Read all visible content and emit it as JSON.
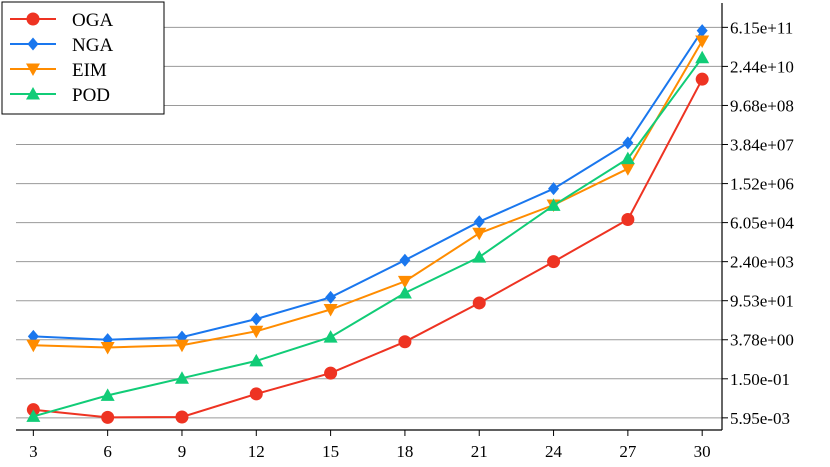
{
  "chart_data": {
    "type": "line",
    "y_scale": "log",
    "y_axis_position": "right",
    "grid": "horizontal",
    "legend_position": "top-left",
    "x": [
      3,
      6,
      9,
      12,
      15,
      18,
      21,
      24,
      27,
      30
    ],
    "x_tick_labels": [
      "3",
      "6",
      "9",
      "12",
      "15",
      "18",
      "21",
      "24",
      "27",
      "30"
    ],
    "y_ticks": [
      0.00595,
      0.15,
      3.78,
      95.3,
      2400,
      60500,
      1520000,
      38400000,
      968000000,
      24400000000,
      615000000000
    ],
    "y_tick_labels": [
      "5.95e-03",
      "1.50e-01",
      "3.78e+00",
      "9.53e+01",
      "2.40e+03",
      "6.05e+04",
      "1.52e+06",
      "3.84e+07",
      "9.68e+08",
      "2.44e+10",
      "6.15e+11"
    ],
    "ylim": [
      0.00218,
      4600000000000
    ],
    "xlim": [
      2.3,
      30.8
    ],
    "series": [
      {
        "name": "OGA",
        "color": "#ee3322",
        "marker": "circle",
        "values": [
          0.0117,
          0.0062,
          0.0064,
          0.043,
          0.24,
          3.2,
          79,
          2400,
          78000,
          8500000000
        ]
      },
      {
        "name": "NGA",
        "color": "#1a77ee",
        "marker": "diamond",
        "values": [
          5.0,
          3.8,
          4.7,
          21,
          126,
          2700,
          65000,
          1000000,
          44000000,
          470000000000
        ]
      },
      {
        "name": "EIM",
        "color": "#ff8c00",
        "marker": "triangle-down",
        "values": [
          2.4,
          2.0,
          2.4,
          7.6,
          46,
          470,
          25000,
          260000,
          5200000,
          200000000000
        ]
      },
      {
        "name": "POD",
        "color": "#11cc77",
        "marker": "triangle-up",
        "values": [
          0.0067,
          0.038,
          0.157,
          0.66,
          4.7,
          180,
          3500,
          250000,
          12000000,
          50000000000
        ]
      }
    ]
  }
}
